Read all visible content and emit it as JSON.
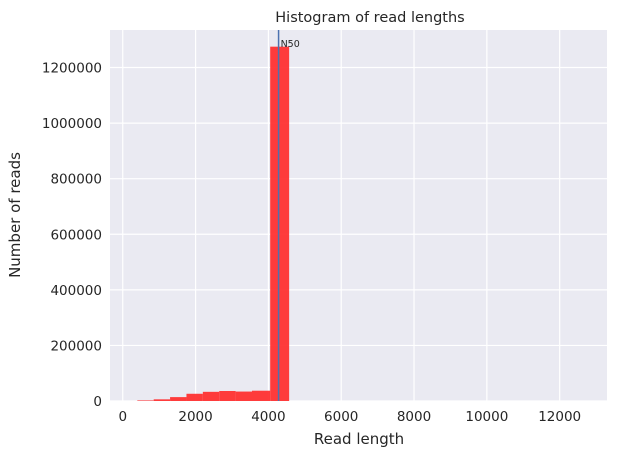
{
  "chart_data": {
    "type": "bar",
    "title": "Histogram of read lengths",
    "xlabel": "Read length",
    "ylabel": "Number of reads",
    "xlim": [
      -350,
      13300
    ],
    "ylim": [
      0,
      1335000
    ],
    "xticks": [
      0,
      2000,
      4000,
      6000,
      8000,
      10000,
      12000
    ],
    "yticks": [
      0,
      200000,
      400000,
      600000,
      800000,
      1000000,
      1200000
    ],
    "grid": true,
    "bar_color": "#ff2b2b",
    "vline_color": "#4c72b0",
    "bins": [
      {
        "start": 400,
        "end": 850,
        "value": 2000
      },
      {
        "start": 850,
        "end": 1300,
        "value": 6000
      },
      {
        "start": 1300,
        "end": 1750,
        "value": 14000
      },
      {
        "start": 1750,
        "end": 2200,
        "value": 26000
      },
      {
        "start": 2200,
        "end": 2650,
        "value": 33000
      },
      {
        "start": 2650,
        "end": 3100,
        "value": 36000
      },
      {
        "start": 3100,
        "end": 3550,
        "value": 34000
      },
      {
        "start": 3550,
        "end": 4050,
        "value": 37000
      },
      {
        "start": 4050,
        "end": 4570,
        "value": 1275000
      }
    ],
    "annotations": [
      {
        "label": "N50",
        "x": 4280
      }
    ]
  }
}
